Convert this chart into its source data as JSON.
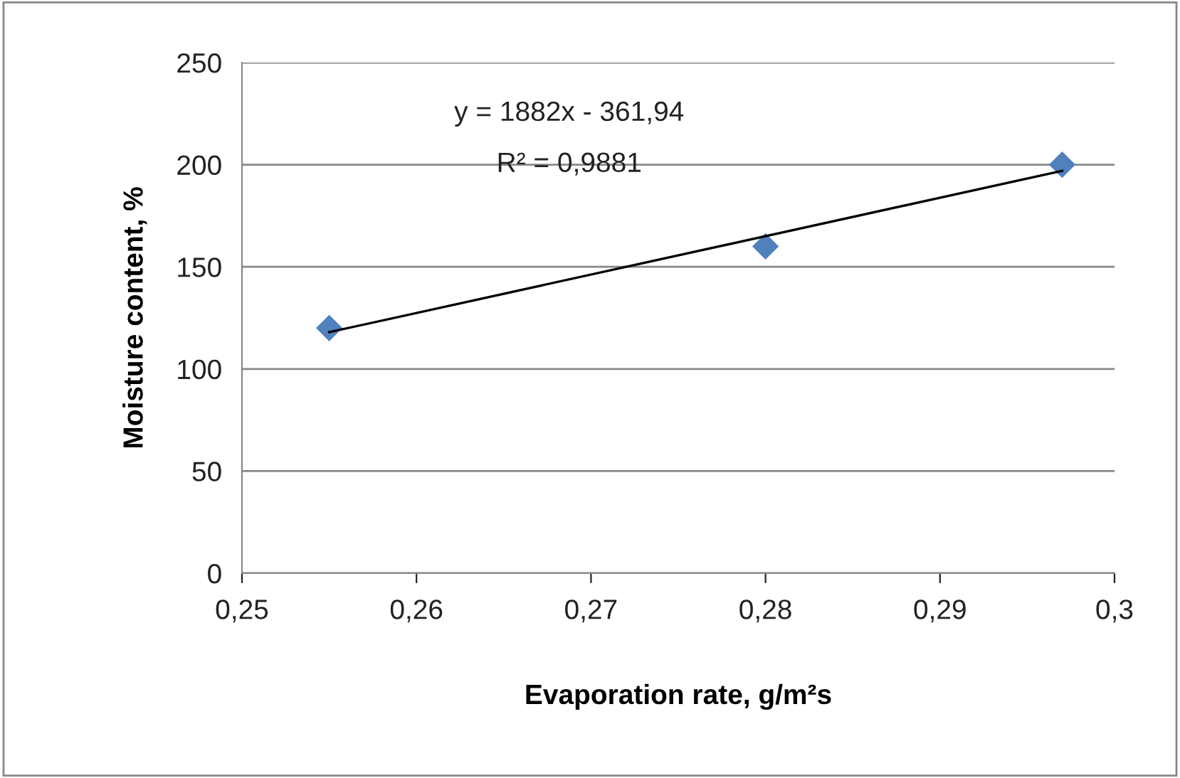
{
  "chart_data": {
    "type": "scatter",
    "xlabel": "Evaporation rate, g/m²s",
    "ylabel": "Moisture content, %",
    "series": [
      {
        "color": "#4f81bd",
        "x": [
          0.255,
          0.28,
          0.297
        ],
        "values": [
          120,
          160,
          200
        ],
        "marker": "diamond"
      },
      {
        "type": "line",
        "color": "#000000",
        "x": [
          0.255,
          0.297
        ],
        "values": [
          118,
          197
        ],
        "marker": "none",
        "line_style": "solid"
      }
    ],
    "xlim": [
      0.25,
      0.3
    ],
    "xticks": [
      {
        "value": 0.25,
        "label": "0,25"
      },
      {
        "value": 0.26,
        "label": "0,26"
      },
      {
        "value": 0.27,
        "label": "0,27"
      },
      {
        "value": 0.28,
        "label": "0,28"
      },
      {
        "value": 0.29,
        "label": "0,29"
      },
      {
        "value": 0.3,
        "label": "0,3"
      }
    ],
    "ylim": [
      0,
      250
    ],
    "yticks": [
      0,
      50,
      100,
      150,
      200,
      250
    ],
    "grid": "y",
    "legend": false,
    "annotations": [
      "y = 1882x - 361,94",
      "R² = 0,9881"
    ]
  }
}
